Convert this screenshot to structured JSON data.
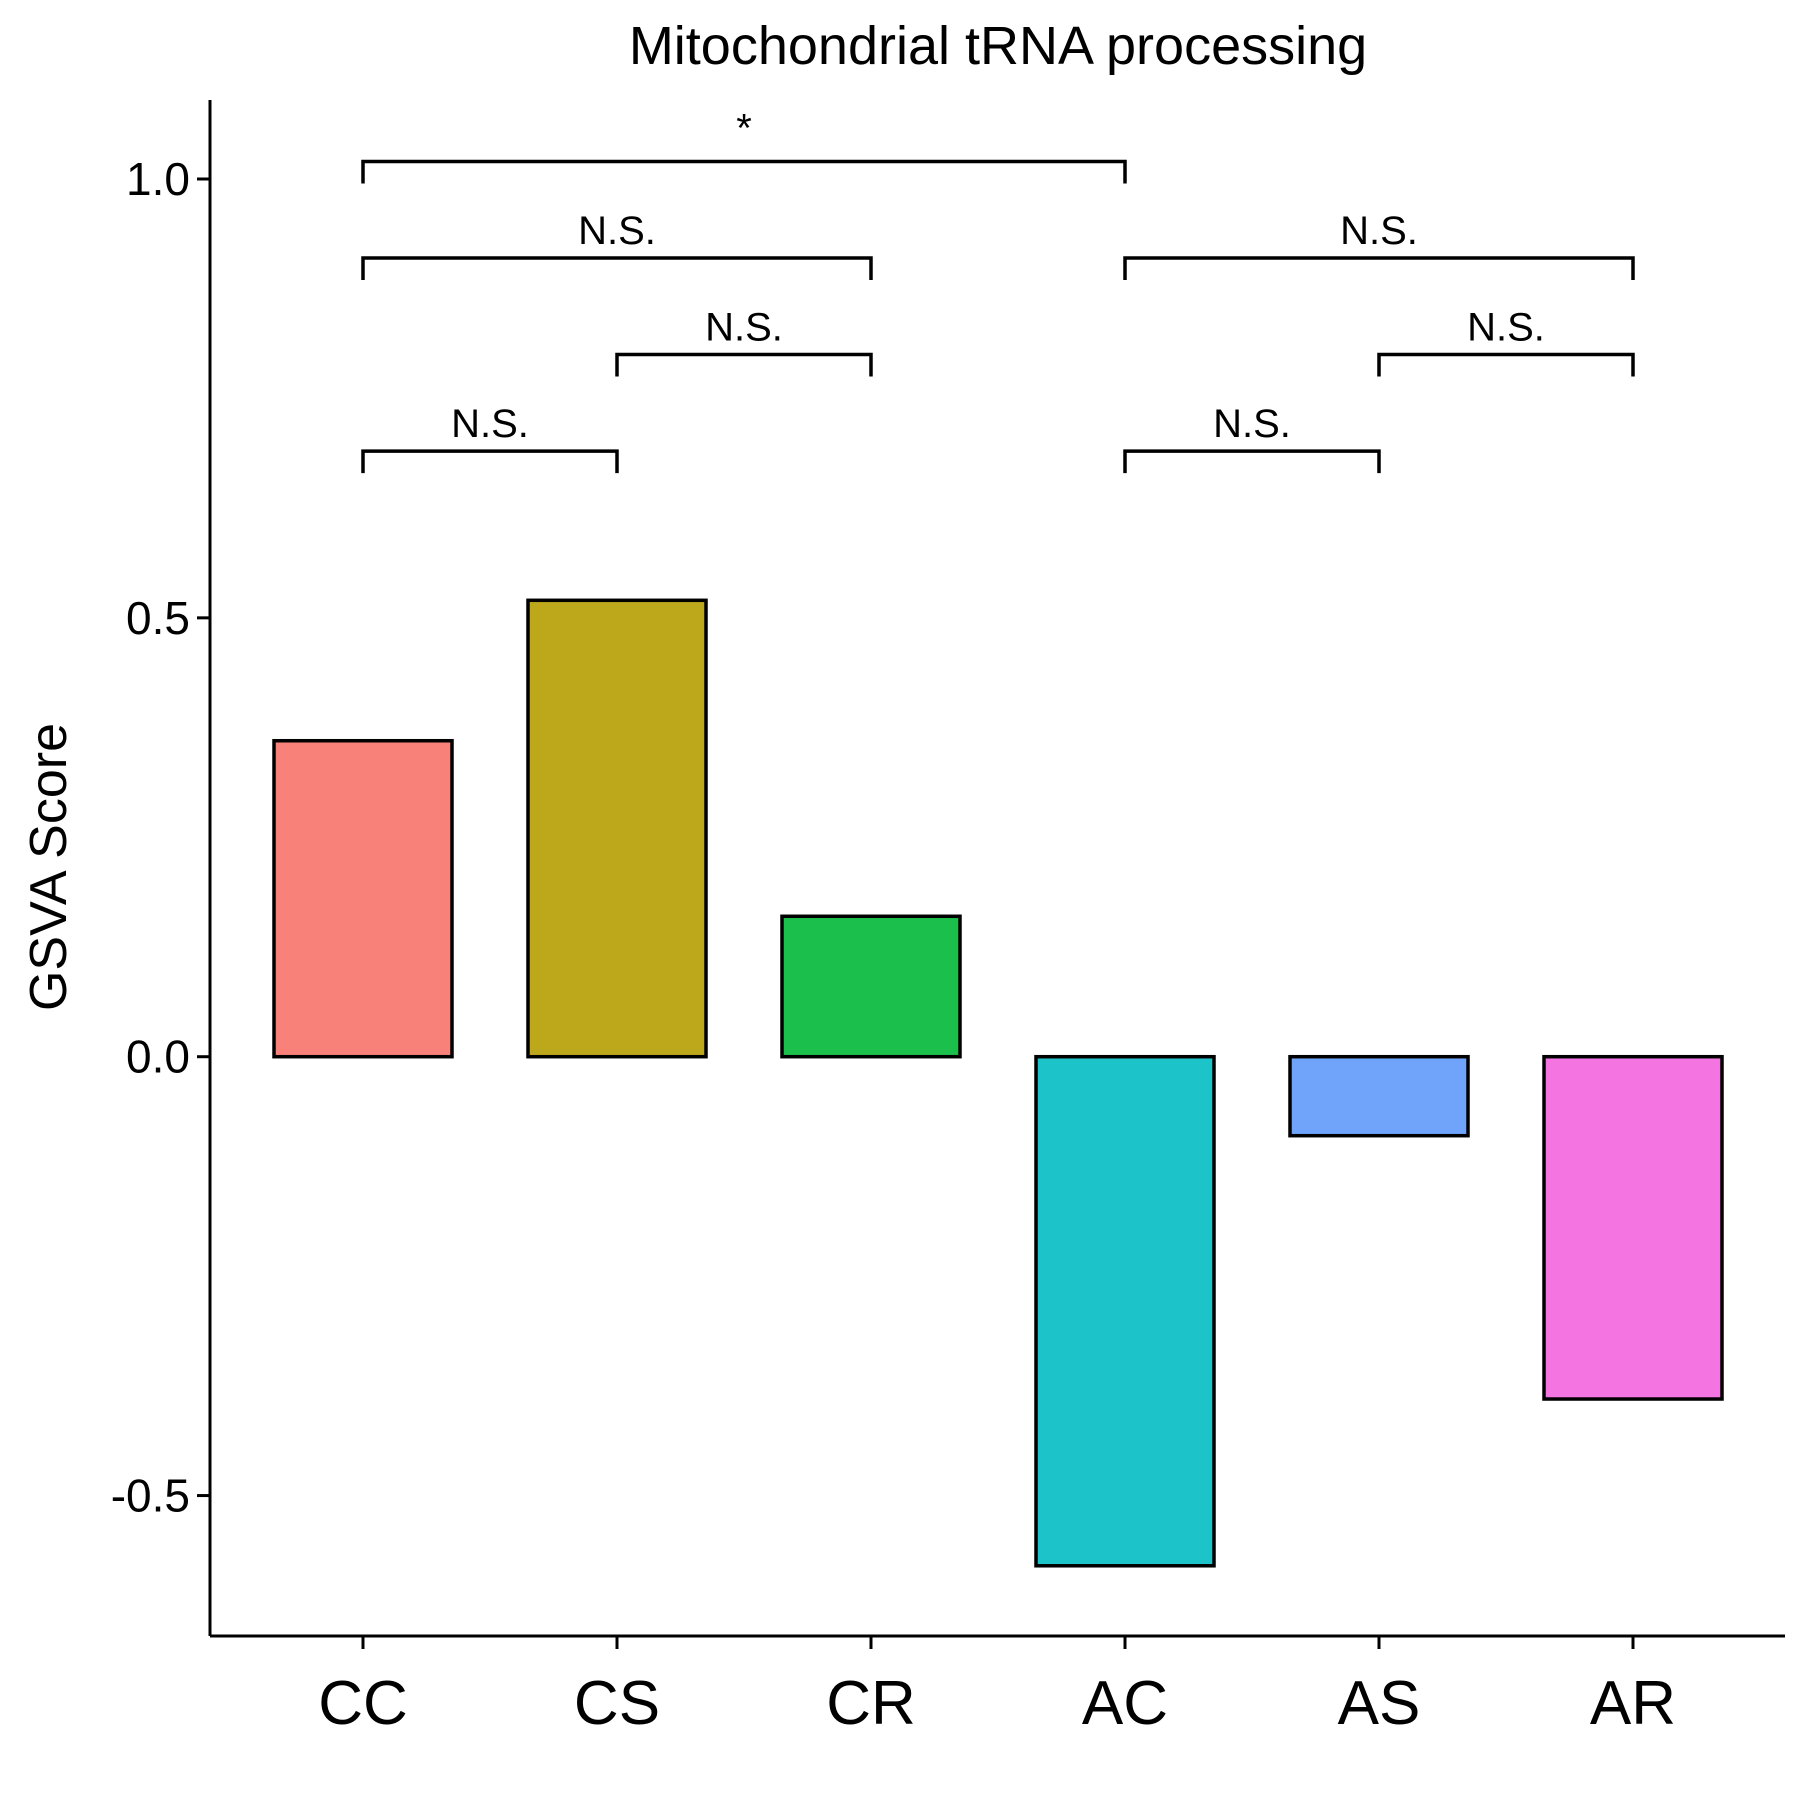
{
  "chart_data": {
    "type": "bar",
    "title": "Mitochondrial tRNA processing",
    "xlabel": "",
    "ylabel": "GSVA Score",
    "categories": [
      "CC",
      "CS",
      "CR",
      "AC",
      "AS",
      "AR"
    ],
    "values": [
      0.36,
      0.52,
      0.16,
      -0.58,
      -0.09,
      -0.39
    ],
    "colors": [
      "#F8827A",
      "#BDA71A",
      "#1BBF4B",
      "#1CC3C8",
      "#70A4FA",
      "#F474E1"
    ],
    "ylim": [
      -0.66,
      1.09
    ],
    "yticks": [
      -0.5,
      0.0,
      0.5,
      1.0
    ],
    "ytick_labels": [
      "-0.5",
      "0.0",
      "0.5",
      "1.0"
    ],
    "grid": false,
    "legend": "none",
    "comparisons": [
      {
        "from": "CC",
        "to": "CS",
        "label": "N.S.",
        "y": 0.69
      },
      {
        "from": "CS",
        "to": "CR",
        "label": "N.S.",
        "y": 0.8
      },
      {
        "from": "CC",
        "to": "CR",
        "label": "N.S.",
        "y": 0.91
      },
      {
        "from": "CC",
        "to": "AC",
        "label": "*",
        "y": 1.02
      },
      {
        "from": "AC",
        "to": "AS",
        "label": "N.S.",
        "y": 0.69
      },
      {
        "from": "AS",
        "to": "AR",
        "label": "N.S.",
        "y": 0.8
      },
      {
        "from": "AC",
        "to": "AR",
        "label": "N.S.",
        "y": 0.91
      }
    ]
  }
}
